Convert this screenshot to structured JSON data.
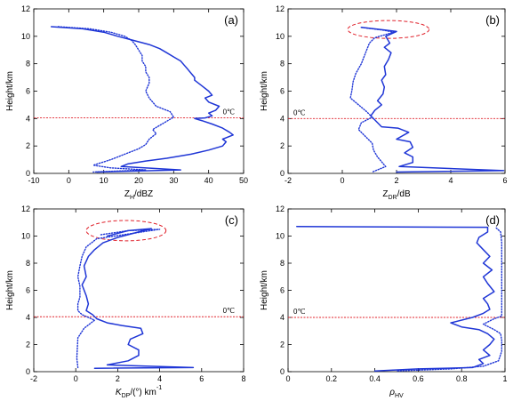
{
  "line_color": "#1f36d6",
  "zero_line_color": "#e0202a",
  "highlight_color": "#e0202a",
  "chart_data": [
    {
      "type": "line",
      "panel_label": "(a)",
      "xlabel": "Z",
      "xlabel_sub": "H",
      "xlabel_unit": "/dBZ",
      "ylabel": "Height/km",
      "xlim": [
        -10,
        50
      ],
      "ylim": [
        0,
        12
      ],
      "xticks": [
        "-10",
        "0",
        "10",
        "20",
        "30",
        "40",
        "50"
      ],
      "yticks": [
        "0",
        "2",
        "4",
        "6",
        "8",
        "10",
        "12"
      ],
      "zero_line": {
        "y": 4.05,
        "label": "0℃"
      },
      "series": [
        {
          "style": "solid",
          "x": [
            -5,
            4,
            10,
            14,
            17,
            20,
            23,
            26,
            28,
            30,
            32,
            33,
            34,
            35,
            36,
            36,
            37,
            38,
            40,
            41,
            39,
            40,
            43,
            42,
            40,
            41,
            39,
            36,
            38,
            41,
            44,
            46,
            47,
            44,
            45,
            44,
            40,
            35,
            28,
            22,
            17,
            15,
            32,
            8
          ],
          "y": [
            10.7,
            10.55,
            10.3,
            10.0,
            9.8,
            9.6,
            9.4,
            9.1,
            8.8,
            8.5,
            8.2,
            7.9,
            7.6,
            7.3,
            7.0,
            6.8,
            6.6,
            6.4,
            6.0,
            5.7,
            5.5,
            5.2,
            4.9,
            4.6,
            4.4,
            4.2,
            4.05,
            4.0,
            3.85,
            3.6,
            3.3,
            3.0,
            2.8,
            2.5,
            2.3,
            2.0,
            1.7,
            1.4,
            1.1,
            0.9,
            0.7,
            0.5,
            0.25,
            0.1
          ]
        },
        {
          "style": "dotted",
          "x": [
            -3,
            6,
            12,
            16,
            18,
            19,
            20,
            21,
            21,
            22,
            22,
            23,
            23,
            22,
            23,
            25,
            29,
            30,
            28,
            26,
            24,
            25,
            23,
            22,
            20,
            16,
            12,
            7,
            12,
            22,
            7
          ],
          "y": [
            10.7,
            10.55,
            10.3,
            10.0,
            9.7,
            9.4,
            9.0,
            8.6,
            8.2,
            7.8,
            7.4,
            7.0,
            6.6,
            6.0,
            5.5,
            4.9,
            4.5,
            4.1,
            3.8,
            3.5,
            3.2,
            2.9,
            2.5,
            2.1,
            1.8,
            1.4,
            1.0,
            0.6,
            0.4,
            0.25,
            0.1
          ]
        }
      ]
    },
    {
      "type": "line",
      "panel_label": "(b)",
      "xlabel": "Z",
      "xlabel_sub": "DR",
      "xlabel_unit": "/dB",
      "ylabel": "Height/km",
      "xlim": [
        -2,
        6
      ],
      "ylim": [
        0,
        12
      ],
      "xticks": [
        "-2",
        "0",
        "2",
        "4",
        "6"
      ],
      "yticks": [
        "0",
        "2",
        "4",
        "6",
        "8",
        "10",
        "12"
      ],
      "zero_line": {
        "y": 4.0,
        "label": "0℃"
      },
      "highlight": {
        "cx": 1.7,
        "cy": 10.5,
        "rx": 1.5,
        "ry": 0.65
      },
      "series": [
        {
          "style": "solid",
          "x": [
            0.7,
            1.6,
            2.0,
            1.6,
            1.75,
            1.55,
            1.8,
            1.7,
            1.55,
            1.6,
            1.45,
            1.55,
            1.5,
            1.3,
            1.45,
            1.2,
            1.05,
            1.2,
            1.45,
            2.05,
            2.45,
            2.0,
            2.5,
            2.6,
            2.3,
            2.6,
            2.6,
            2.1,
            5.95,
            2.0
          ],
          "y": [
            10.65,
            10.45,
            10.35,
            10.0,
            9.5,
            9.2,
            8.8,
            8.3,
            7.8,
            7.2,
            6.8,
            6.3,
            5.8,
            5.3,
            5.0,
            4.6,
            4.2,
            3.9,
            3.4,
            3.3,
            3.0,
            2.5,
            2.3,
            1.9,
            1.5,
            1.2,
            0.8,
            0.5,
            0.2,
            0.1
          ]
        },
        {
          "style": "dotted",
          "x": [
            0.7,
            1.5,
            1.9,
            1.2,
            1.0,
            0.9,
            0.8,
            0.7,
            0.5,
            0.4,
            0.35,
            0.3,
            0.6,
            0.9,
            1.1,
            0.7,
            0.6,
            0.85,
            1.1,
            1.15,
            1.3,
            1.6,
            1.1
          ],
          "y": [
            10.65,
            10.45,
            10.3,
            9.9,
            9.5,
            9.0,
            8.5,
            8.0,
            7.3,
            6.7,
            6.0,
            5.5,
            5.0,
            4.5,
            4.1,
            3.7,
            3.2,
            2.7,
            2.2,
            1.7,
            1.2,
            0.5,
            0.1
          ]
        }
      ]
    },
    {
      "type": "line",
      "panel_label": "(c)",
      "xlabel": "K",
      "xlabel_sub": "DP",
      "xlabel_unit": "/(°) km",
      "xlabel_sup": "-1",
      "ylabel": "Height/km",
      "xlim": [
        -2,
        8
      ],
      "ylim": [
        0,
        12
      ],
      "xticks": [
        "-2",
        "0",
        "2",
        "4",
        "6",
        "8"
      ],
      "yticks": [
        "0",
        "2",
        "4",
        "6",
        "8",
        "10",
        "12"
      ],
      "zero_line": {
        "y": 4.05,
        "label": "0℃"
      },
      "highlight": {
        "cx": 2.4,
        "cy": 10.4,
        "rx": 1.9,
        "ry": 0.75
      },
      "series": [
        {
          "style": "solid",
          "x": [
            1.5,
            2.5,
            3.6,
            2.0,
            1.3,
            0.9,
            0.6,
            0.4,
            0.5,
            0.3,
            0.5,
            0.6,
            0.5,
            0.8,
            1.0,
            1.5,
            2.2,
            3.1,
            3.2,
            2.6,
            2.5,
            3.0,
            3.0,
            2.5,
            1.5,
            5.6,
            0.9
          ],
          "y": [
            10.0,
            10.4,
            10.55,
            9.9,
            9.5,
            9.0,
            8.5,
            7.8,
            7.0,
            6.4,
            5.6,
            5.0,
            4.5,
            4.2,
            3.9,
            3.6,
            3.4,
            3.2,
            2.8,
            2.4,
            2.0,
            1.6,
            1.2,
            0.8,
            0.5,
            0.3,
            0.25
          ]
        },
        {
          "style": "dotted",
          "x": [
            1.2,
            2.5,
            4.0,
            1.0,
            0.5,
            0.3,
            0.2,
            0.1,
            0.2,
            0.2,
            0.1,
            0.1,
            0.3,
            0.6,
            0.9,
            0.4,
            0.1,
            0.05,
            0.1
          ],
          "y": [
            10.1,
            10.4,
            10.5,
            9.8,
            9.2,
            8.5,
            7.8,
            7.0,
            6.3,
            5.5,
            5.0,
            4.5,
            4.2,
            4.0,
            3.8,
            3.2,
            2.5,
            1.0,
            0.3
          ]
        }
      ]
    },
    {
      "type": "line",
      "panel_label": "(d)",
      "xlabel": "ρ",
      "xlabel_sub": "HV",
      "xlabel_unit": "",
      "ylabel": "Height/km",
      "xlim": [
        0,
        1
      ],
      "ylim": [
        0,
        12
      ],
      "xticks": [
        "0",
        "0.2",
        "0.4",
        "0.6",
        "0.8",
        "1"
      ],
      "yticks": [
        "0",
        "2",
        "4",
        "6",
        "8",
        "10",
        "12"
      ],
      "zero_line": {
        "y": 4.0,
        "label": "0℃"
      },
      "series": [
        {
          "style": "solid",
          "x": [
            0.04,
            0.92,
            0.92,
            0.88,
            0.87,
            0.9,
            0.93,
            0.9,
            0.94,
            0.9,
            0.92,
            0.95,
            0.9,
            0.92,
            0.93,
            0.9,
            0.85,
            0.75,
            0.8,
            0.88,
            0.92,
            0.95,
            0.93,
            0.9,
            0.93,
            0.88,
            0.9,
            0.85,
            0.6,
            0.4
          ],
          "y": [
            10.7,
            10.65,
            10.3,
            9.9,
            9.5,
            9.0,
            8.5,
            8.0,
            7.5,
            7.0,
            6.5,
            5.9,
            5.4,
            5.0,
            4.6,
            4.3,
            4.0,
            3.6,
            3.3,
            3.1,
            2.8,
            2.4,
            2.0,
            1.6,
            1.2,
            0.9,
            0.6,
            0.3,
            0.2,
            0.05
          ]
        },
        {
          "style": "dotted",
          "x": [
            0.96,
            0.98,
            0.985,
            0.985,
            0.985,
            0.985,
            0.985,
            0.985,
            0.985,
            0.95,
            0.9,
            0.95,
            0.98,
            0.985,
            0.985,
            0.97,
            0.9,
            0.75,
            0.5
          ],
          "y": [
            10.6,
            10.3,
            9.5,
            8.5,
            7.5,
            6.5,
            5.5,
            4.5,
            4.1,
            3.9,
            3.5,
            3.1,
            2.8,
            2.3,
            1.5,
            0.8,
            0.4,
            0.2,
            0.05
          ]
        }
      ]
    }
  ]
}
